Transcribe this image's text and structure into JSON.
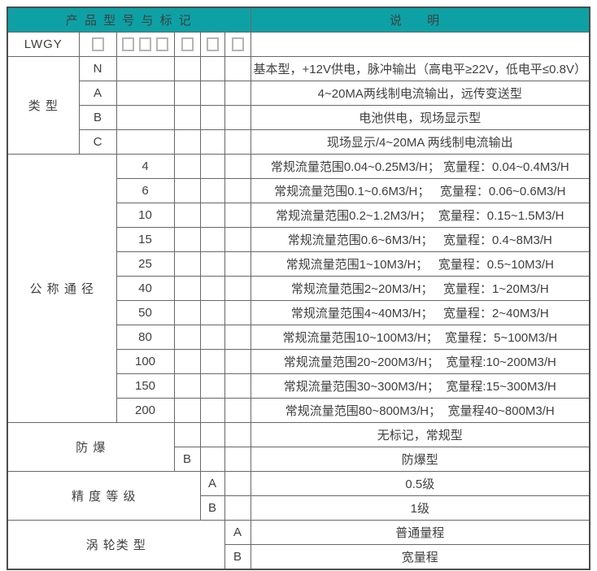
{
  "colors": {
    "header_bg": "#0DA1A5",
    "header_text": "#FFFFFF",
    "border": "#686868",
    "outer_border": "#4C4C4C",
    "text": "#3F3F3F",
    "box_border": "#B5B5B5"
  },
  "header": {
    "product_model_mark": "产 品 型 号 与 标 记",
    "description": "说 明"
  },
  "model_prefix": "LWGY",
  "section_labels": {
    "type": "类 型",
    "nominal_diameter": "公 称 通 径",
    "explosion_proof": "防 爆",
    "accuracy_class": "精 度 等 级",
    "turbine_type": "涡 轮类 型"
  },
  "table": {
    "rows": [
      {
        "name": "header-row",
        "cells": [
          {
            "t": "产 品 型 号 与 标 记",
            "cs": 6,
            "cls": "th",
            "name": "header-product-model-mark"
          },
          {
            "t": "说 明",
            "cls": "th th-desc",
            "name": "header-description"
          }
        ]
      },
      {
        "name": "model-code-row",
        "cells": [
          {
            "t": "LWGY",
            "cls": "model",
            "name": "model-prefix"
          },
          {
            "boxes": 1,
            "name": "code-box-type"
          },
          {
            "boxes": 3,
            "name": "code-box-diameter"
          },
          {
            "boxes": 1,
            "name": "code-box-explosion"
          },
          {
            "boxes": 1,
            "name": "code-box-accuracy"
          },
          {
            "boxes": 1,
            "name": "code-box-turbine"
          },
          {
            "t": "",
            "cls": "desc",
            "name": "empty-description-cell"
          }
        ]
      },
      {
        "name": "type-row-N",
        "cells": [
          {
            "t": "类 型",
            "rs": 4,
            "cls": "label",
            "name": "section-label-type"
          },
          {
            "t": "N",
            "cls": "code",
            "name": "type-code-N"
          },
          {
            "t": "",
            "name": "empty-cell"
          },
          {
            "t": "",
            "name": "empty-cell"
          },
          {
            "t": "",
            "name": "empty-cell"
          },
          {
            "t": "",
            "name": "empty-cell"
          },
          {
            "t": "基本型，+12V供电，脉冲输出（高电平≥22V，低电平≤0.8V）",
            "cls": "desc",
            "name": "type-desc-N"
          }
        ]
      },
      {
        "name": "type-row-A",
        "cells": [
          {
            "t": "A",
            "cls": "code",
            "name": "type-code-A"
          },
          {
            "t": "",
            "name": "empty-cell"
          },
          {
            "t": "",
            "name": "empty-cell"
          },
          {
            "t": "",
            "name": "empty-cell"
          },
          {
            "t": "",
            "name": "empty-cell"
          },
          {
            "t": "4~20MA两线制电流输出，远传变送型",
            "cls": "desc",
            "name": "type-desc-A"
          }
        ]
      },
      {
        "name": "type-row-B",
        "cells": [
          {
            "t": "B",
            "cls": "code",
            "name": "type-code-B"
          },
          {
            "t": "",
            "name": "empty-cell"
          },
          {
            "t": "",
            "name": "empty-cell"
          },
          {
            "t": "",
            "name": "empty-cell"
          },
          {
            "t": "",
            "name": "empty-cell"
          },
          {
            "t": "电池供电，现场显示型",
            "cls": "desc",
            "name": "type-desc-B"
          }
        ]
      },
      {
        "name": "type-row-C",
        "cells": [
          {
            "t": "C",
            "cls": "code",
            "name": "type-code-C"
          },
          {
            "t": "",
            "name": "empty-cell"
          },
          {
            "t": "",
            "name": "empty-cell"
          },
          {
            "t": "",
            "name": "empty-cell"
          },
          {
            "t": "",
            "name": "empty-cell"
          },
          {
            "t": "现场显示/4~20MA 两线制电流输出",
            "cls": "desc",
            "name": "type-desc-C"
          }
        ]
      },
      {
        "name": "diameter-row-4",
        "cells": [
          {
            "t": "公 称 通 径",
            "rs": 11,
            "cs": 2,
            "cls": "label",
            "name": "section-label-diameter"
          },
          {
            "t": "4",
            "cls": "code",
            "name": "diameter-code-4"
          },
          {
            "t": "",
            "name": "empty-cell"
          },
          {
            "t": "",
            "name": "empty-cell"
          },
          {
            "t": "",
            "name": "empty-cell"
          },
          {
            "t": "常规流量范围0.04~0.25M3/H； 宽量程：0.04~0.4M3/H",
            "cls": "desc",
            "name": "diameter-desc-4"
          }
        ]
      },
      {
        "name": "diameter-row-6",
        "cells": [
          {
            "t": "6",
            "cls": "code",
            "name": "diameter-code-6"
          },
          {
            "t": "",
            "name": "empty-cell"
          },
          {
            "t": "",
            "name": "empty-cell"
          },
          {
            "t": "",
            "name": "empty-cell"
          },
          {
            "t": "常规流量范围0.1~0.6M3/H；   宽量程：0.06~0.6M3/H",
            "cls": "desc",
            "name": "diameter-desc-6"
          }
        ]
      },
      {
        "name": "diameter-row-10",
        "cells": [
          {
            "t": "10",
            "cls": "code",
            "name": "diameter-code-10"
          },
          {
            "t": "",
            "name": "empty-cell"
          },
          {
            "t": "",
            "name": "empty-cell"
          },
          {
            "t": "",
            "name": "empty-cell"
          },
          {
            "t": "常规流量范围0.2~1.2M3/H；  宽量程：0.15~1.5M3/H",
            "cls": "desc",
            "name": "diameter-desc-10"
          }
        ]
      },
      {
        "name": "diameter-row-15",
        "cells": [
          {
            "t": "15",
            "cls": "code",
            "name": "diameter-code-15"
          },
          {
            "t": "",
            "name": "empty-cell"
          },
          {
            "t": "",
            "name": "empty-cell"
          },
          {
            "t": "",
            "name": "empty-cell"
          },
          {
            "t": "常规流量范围0.6~6M3/H；   宽量程：0.4~8M3/H",
            "cls": "desc",
            "name": "diameter-desc-15"
          }
        ]
      },
      {
        "name": "diameter-row-25",
        "cells": [
          {
            "t": "25",
            "cls": "code",
            "name": "diameter-code-25"
          },
          {
            "t": "",
            "name": "empty-cell"
          },
          {
            "t": "",
            "name": "empty-cell"
          },
          {
            "t": "",
            "name": "empty-cell"
          },
          {
            "t": "常规流量范围1~10M3/H；   宽量程：0.5~10M3/H",
            "cls": "desc",
            "name": "diameter-desc-25"
          }
        ]
      },
      {
        "name": "diameter-row-40",
        "cells": [
          {
            "t": "40",
            "cls": "code",
            "name": "diameter-code-40"
          },
          {
            "t": "",
            "name": "empty-cell"
          },
          {
            "t": "",
            "name": "empty-cell"
          },
          {
            "t": "",
            "name": "empty-cell"
          },
          {
            "t": "常规流量范围2~20M3/H；   宽量程：1~20M3/H",
            "cls": "desc",
            "name": "diameter-desc-40"
          }
        ]
      },
      {
        "name": "diameter-row-50",
        "cells": [
          {
            "t": "50",
            "cls": "code",
            "name": "diameter-code-50"
          },
          {
            "t": "",
            "name": "empty-cell"
          },
          {
            "t": "",
            "name": "empty-cell"
          },
          {
            "t": "",
            "name": "empty-cell"
          },
          {
            "t": "常规流量范围4~40M3/H；   宽量程：2~40M3/H",
            "cls": "desc",
            "name": "diameter-desc-50"
          }
        ]
      },
      {
        "name": "diameter-row-80",
        "cells": [
          {
            "t": "80",
            "cls": "code",
            "name": "diameter-code-80"
          },
          {
            "t": "",
            "name": "empty-cell"
          },
          {
            "t": "",
            "name": "empty-cell"
          },
          {
            "t": "",
            "name": "empty-cell"
          },
          {
            "t": "常规流量范围10~100M3/H；  宽量程：5~100M3/H",
            "cls": "desc",
            "name": "diameter-desc-80"
          }
        ]
      },
      {
        "name": "diameter-row-100",
        "cells": [
          {
            "t": "100",
            "cls": "code",
            "name": "diameter-code-100"
          },
          {
            "t": "",
            "name": "empty-cell"
          },
          {
            "t": "",
            "name": "empty-cell"
          },
          {
            "t": "",
            "name": "empty-cell"
          },
          {
            "t": "常规流量范围20~200M3/H；  宽量程:10~200M3/H",
            "cls": "desc",
            "name": "diameter-desc-100"
          }
        ]
      },
      {
        "name": "diameter-row-150",
        "cells": [
          {
            "t": "150",
            "cls": "code",
            "name": "diameter-code-150"
          },
          {
            "t": "",
            "name": "empty-cell"
          },
          {
            "t": "",
            "name": "empty-cell"
          },
          {
            "t": "",
            "name": "empty-cell"
          },
          {
            "t": "常规流量范围30~300M3/H；  宽量程:15~300M3/H",
            "cls": "desc",
            "name": "diameter-desc-150"
          }
        ]
      },
      {
        "name": "diameter-row-200",
        "cells": [
          {
            "t": "200",
            "cls": "code",
            "name": "diameter-code-200"
          },
          {
            "t": "",
            "name": "empty-cell"
          },
          {
            "t": "",
            "name": "empty-cell"
          },
          {
            "t": "",
            "name": "empty-cell"
          },
          {
            "t": "常规流量范围80~800M3/H；  宽量程40~800M3/H",
            "cls": "desc",
            "name": "diameter-desc-200"
          }
        ]
      },
      {
        "name": "explosion-row-none",
        "cells": [
          {
            "t": "防 爆",
            "rs": 2,
            "cs": 3,
            "cls": "label",
            "name": "section-label-explosion-proof"
          },
          {
            "t": "",
            "cls": "code",
            "name": "explosion-code-none"
          },
          {
            "t": "",
            "name": "empty-cell"
          },
          {
            "t": "",
            "name": "empty-cell"
          },
          {
            "t": "无标记，常规型",
            "cls": "desc",
            "name": "explosion-desc-none"
          }
        ]
      },
      {
        "name": "explosion-row-B",
        "cells": [
          {
            "t": "B",
            "cls": "code",
            "name": "explosion-code-B"
          },
          {
            "t": "",
            "name": "empty-cell"
          },
          {
            "t": "",
            "name": "empty-cell"
          },
          {
            "t": "防爆型",
            "cls": "desc",
            "name": "explosion-desc-B"
          }
        ]
      },
      {
        "name": "accuracy-row-A",
        "cells": [
          {
            "t": "精 度 等 级",
            "rs": 2,
            "cs": 4,
            "cls": "label",
            "name": "section-label-accuracy"
          },
          {
            "t": "A",
            "cls": "code",
            "name": "accuracy-code-A"
          },
          {
            "t": "",
            "name": "empty-cell"
          },
          {
            "t": "0.5级",
            "cls": "desc",
            "name": "accuracy-desc-A"
          }
        ]
      },
      {
        "name": "accuracy-row-B",
        "cells": [
          {
            "t": "B",
            "cls": "code",
            "name": "accuracy-code-B"
          },
          {
            "t": "",
            "name": "empty-cell"
          },
          {
            "t": "1级",
            "cls": "desc",
            "name": "accuracy-desc-B"
          }
        ]
      },
      {
        "name": "turbine-row-A",
        "cells": [
          {
            "t": "涡 轮类 型",
            "rs": 2,
            "cs": 5,
            "cls": "label",
            "name": "section-label-turbine"
          },
          {
            "t": "A",
            "cls": "code",
            "name": "turbine-code-A"
          },
          {
            "t": "普通量程",
            "cls": "desc",
            "name": "turbine-desc-A"
          }
        ]
      },
      {
        "name": "turbine-row-B",
        "cells": [
          {
            "t": "B",
            "cls": "code",
            "name": "turbine-code-B"
          },
          {
            "t": "宽量程",
            "cls": "desc",
            "name": "turbine-desc-B"
          }
        ]
      }
    ]
  }
}
